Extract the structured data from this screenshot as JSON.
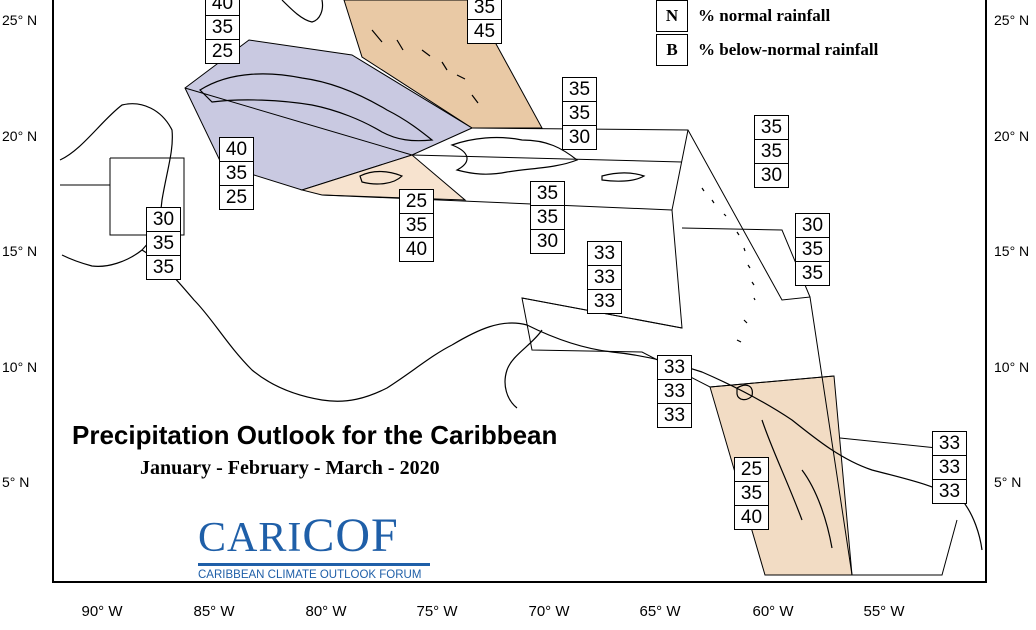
{
  "title": "Precipitation Outlook for the Caribbean",
  "subtitle": "January - February - March - 2020",
  "legend": [
    {
      "key": "N",
      "text": "% normal rainfall"
    },
    {
      "key": "B",
      "text": "% below-normal rainfall"
    }
  ],
  "logo": {
    "name_part1": "CARI",
    "name_part2": "COF",
    "tagline": "CARIBBEAN CLIMATE OUTLOOK FORUM"
  },
  "lat_labels": [
    "25° N",
    "20° N",
    "15° N",
    "10° N",
    "5° N"
  ],
  "lon_labels": [
    "90° W",
    "85° W",
    "80° W",
    "75° W",
    "70° W",
    "65° W",
    "60° W",
    "55° W"
  ],
  "colors": {
    "above_normal": "#e9c9a5",
    "below_normal": "#c9c9e1",
    "light_above": "#f7e3cf",
    "logo_blue": "#1f5fa8"
  },
  "regions": [
    {
      "id": "northwest",
      "values": [
        "40",
        "35",
        "25"
      ]
    },
    {
      "id": "bahamas",
      "values": [
        "35",
        "45"
      ]
    },
    {
      "id": "turks-caicos",
      "values": [
        "35",
        "35",
        "30"
      ]
    },
    {
      "id": "cuba",
      "values": [
        "40",
        "35",
        "25"
      ]
    },
    {
      "id": "belize",
      "values": [
        "30",
        "35",
        "35"
      ]
    },
    {
      "id": "jamaica",
      "values": [
        "25",
        "35",
        "40"
      ]
    },
    {
      "id": "hispaniola",
      "values": [
        "35",
        "35",
        "30"
      ]
    },
    {
      "id": "leeward-islands",
      "values": [
        "35",
        "35",
        "30"
      ]
    },
    {
      "id": "eastern-caribbean",
      "values": [
        "30",
        "35",
        "35"
      ]
    },
    {
      "id": "southern-caribbean-sea",
      "values": [
        "33",
        "33",
        "33"
      ]
    },
    {
      "id": "trinidad",
      "values": [
        "33",
        "33",
        "33"
      ]
    },
    {
      "id": "guyana",
      "values": [
        "25",
        "35",
        "40"
      ]
    },
    {
      "id": "suriname-french-guiana",
      "values": [
        "33",
        "33",
        "33"
      ]
    }
  ]
}
